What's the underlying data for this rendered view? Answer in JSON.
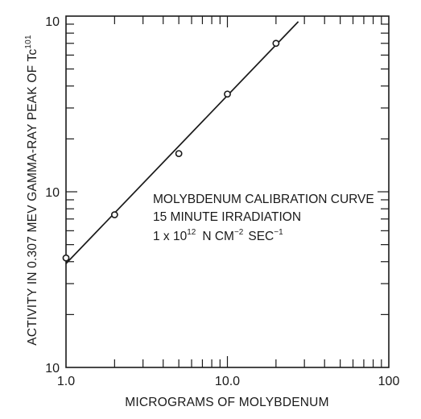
{
  "chart_data": {
    "type": "scatter",
    "x_scale": "log",
    "y_scale": "log",
    "xlim": [
      1,
      100
    ],
    "ylim": [
      1,
      100
    ],
    "x_ticks": [
      {
        "value": 1,
        "label": "1.0"
      },
      {
        "value": 10,
        "label": "10.0"
      },
      {
        "value": 100,
        "label": "100"
      }
    ],
    "y_ticks": [
      {
        "value": 1,
        "label": "10"
      },
      {
        "value": 10,
        "label": "10"
      },
      {
        "value": 100,
        "label": "10"
      }
    ],
    "xlabel": "MICROGRAMS OF MOLYBDENUM",
    "ylabel": "ACTIVITY IN 0.307 MEV GAMMA-RAY PEAK OF Tc",
    "ylabel_sup": "101",
    "grid": false,
    "series": [
      {
        "marker": "open-circle",
        "x": [
          1,
          2,
          5,
          10,
          20
        ],
        "y": [
          4.2,
          7.4,
          16.5,
          36,
          70
        ]
      }
    ],
    "fit_line": {
      "x": [
        1.0,
        27.5
      ],
      "y": [
        3.9,
        93
      ]
    },
    "annotation": {
      "line1": "MOLYBDENUM CALIBRATION CURVE",
      "line2": "15 MINUTE IRRADIATION",
      "line3_prefix": "1 x 10",
      "line3_exp": "12",
      "line3_mid1": "N  CM",
      "line3_exp2": "−2",
      "line3_mid2": "SEC",
      "line3_exp3": "−1"
    }
  }
}
